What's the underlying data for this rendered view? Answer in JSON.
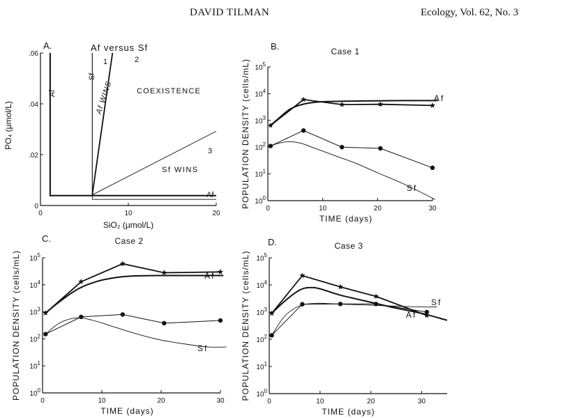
{
  "header": {
    "author": "DAVID TILMAN",
    "journal": "Ecology, Vol. 62, No. 3"
  },
  "chart_data": [
    {
      "panel": "A.",
      "type": "line",
      "title": "Af versus Sf",
      "xlabel": "SiO₂ (μmol/L)",
      "ylabel": "PO₄ (μmol/L)",
      "xlim": [
        0,
        20
      ],
      "ylim": [
        0,
        0.06
      ],
      "xticks": [
        "0",
        "10",
        "20"
      ],
      "yticks": [
        ".06",
        ".04",
        ".02",
        "0"
      ],
      "region_labels": [
        "Af WINS",
        "COEXISTENCE",
        "Sf WINS"
      ],
      "line_numbers": [
        "1",
        "2",
        "3"
      ],
      "series": [
        {
          "name": "Af",
          "points": [
            [
              1.1,
              0.06
            ],
            [
              1.1,
              0.0039
            ],
            [
              20,
              0.0039
            ]
          ]
        },
        {
          "name": "Sf",
          "points": [
            [
              5.9,
              0.06
            ],
            [
              5.9,
              0.0024
            ],
            [
              20,
              0.0024
            ]
          ]
        },
        {
          "name": "1",
          "points": [
            [
              5.9,
              0.0042
            ],
            [
              5.9,
              0.06
            ]
          ]
        },
        {
          "name": "2",
          "points": [
            [
              5.9,
              0.0042
            ],
            [
              8.2,
              0.06
            ]
          ]
        },
        {
          "name": "3",
          "points": [
            [
              5.9,
              0.0042
            ],
            [
              20,
              0.0292
            ]
          ]
        }
      ]
    },
    {
      "panel": "B.",
      "type": "line",
      "title": "Case 1",
      "xlabel": "TIME (days)",
      "ylabel": "POPULATION DENSITY (cells/mL)",
      "xlim": [
        0,
        30
      ],
      "ylim": [
        1,
        100000
      ],
      "yscale": "log",
      "xticks": [
        "0",
        "10",
        "20",
        "30"
      ],
      "yticks": [
        "10^5",
        "10^4",
        "10^3",
        "10^2",
        "10^1",
        "10^0"
      ],
      "series": [
        {
          "name": "Af",
          "marker": "star",
          "x": [
            0.5,
            6.5,
            13.5,
            20.5,
            30
          ],
          "y": [
            650,
            6000,
            3900,
            4000,
            3600
          ]
        },
        {
          "name": "Af",
          "marker": "none",
          "x": [
            0.5,
            2,
            4,
            6,
            8,
            10,
            14,
            20,
            25,
            31
          ],
          "y": [
            650,
            1200,
            2600,
            3800,
            4600,
            5000,
            5200,
            5400,
            5500,
            5500
          ]
        },
        {
          "name": "Sf",
          "marker": "dot",
          "x": [
            0.5,
            6.5,
            13.5,
            20.5,
            30
          ],
          "y": [
            110,
            420,
            100,
            90,
            17
          ]
        },
        {
          "name": "Sf",
          "marker": "none",
          "x": [
            0.5,
            2,
            4,
            6,
            8,
            12,
            16,
            20,
            25,
            30.5
          ],
          "y": [
            110,
            140,
            160,
            140,
            100,
            50,
            25,
            11,
            4,
            1.1
          ]
        }
      ]
    },
    {
      "panel": "C.",
      "type": "line",
      "title": "Case 2",
      "xlabel": "TIME (days)",
      "ylabel": "POPULATION DENSITY (cells/mL)",
      "xlim": [
        0,
        30
      ],
      "ylim": [
        1,
        100000
      ],
      "yscale": "log",
      "xticks": [
        "0",
        "10",
        "20",
        "30"
      ],
      "yticks": [
        "10^5",
        "10^4",
        "10^3",
        "10^2",
        "10^1",
        "10^0"
      ],
      "series": [
        {
          "name": "Af",
          "marker": "star",
          "x": [
            0.5,
            6.5,
            13.5,
            20.5,
            30
          ],
          "y": [
            900,
            13000,
            60000,
            28000,
            30000
          ]
        },
        {
          "name": "Af",
          "marker": "none",
          "x": [
            0.5,
            3,
            6,
            9,
            12,
            15,
            20,
            25,
            30.5
          ],
          "y": [
            900,
            2500,
            7000,
            13000,
            18000,
            21000,
            22000,
            22000,
            22000
          ]
        },
        {
          "name": "Sf",
          "marker": "dot",
          "x": [
            0.5,
            6.5,
            13.5,
            20.5,
            30
          ],
          "y": [
            150,
            650,
            800,
            380,
            480
          ]
        },
        {
          "name": "Sf",
          "marker": "none",
          "x": [
            0.5,
            3,
            6,
            9,
            12,
            16,
            20,
            25,
            28,
            31
          ],
          "y": [
            150,
            400,
            600,
            450,
            280,
            150,
            90,
            60,
            50,
            50
          ]
        }
      ]
    },
    {
      "panel": "D.",
      "type": "line",
      "title": "Case 3",
      "xlabel": "TIME (days)",
      "ylabel": "POPULATION DENSITY (cells/mL)",
      "xlim": [
        0,
        35
      ],
      "ylim": [
        1,
        100000
      ],
      "yscale": "log",
      "xticks": [
        "0",
        "10",
        "20",
        "30"
      ],
      "yticks": [
        "10^5",
        "10^4",
        "10^3",
        "10^2",
        "10^1",
        "10^0"
      ],
      "series": [
        {
          "name": "Af",
          "marker": "star",
          "x": [
            0.5,
            6.5,
            14,
            21,
            31
          ],
          "y": [
            900,
            22000,
            8500,
            3800,
            750
          ]
        },
        {
          "name": "Af",
          "marker": "none",
          "x": [
            0.5,
            3,
            6,
            8,
            10,
            14,
            20,
            25,
            30,
            35
          ],
          "y": [
            900,
            2500,
            6500,
            8000,
            7200,
            4200,
            2300,
            1400,
            900,
            500
          ]
        },
        {
          "name": "Sf",
          "marker": "dot",
          "x": [
            0.5,
            6.5,
            14,
            21,
            31
          ],
          "y": [
            140,
            1950,
            2000,
            2000,
            1000
          ]
        },
        {
          "name": "Sf",
          "marker": "none",
          "x": [
            0.5,
            3,
            6,
            9,
            12,
            16,
            20,
            25,
            30,
            33
          ],
          "y": [
            140,
            700,
            1700,
            2100,
            2050,
            1900,
            1800,
            1650,
            1550,
            1550
          ]
        }
      ]
    }
  ]
}
